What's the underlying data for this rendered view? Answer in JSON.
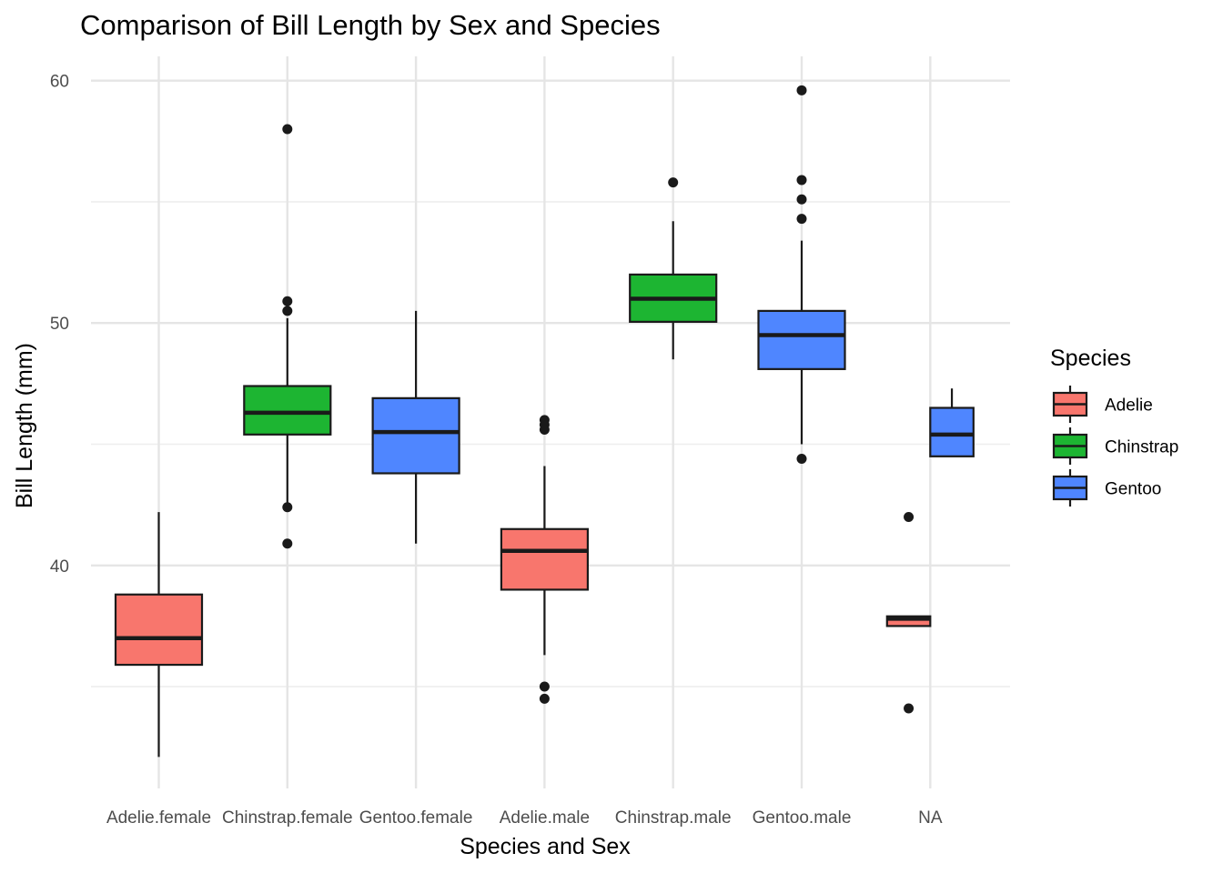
{
  "chart_data": {
    "type": "boxplot",
    "title": "Comparison of Bill Length by Sex and Species",
    "xlabel": "Species and Sex",
    "ylabel": "Bill Length (mm)",
    "categories": [
      "Adelie.female",
      "Chinstrap.female",
      "Gentoo.female",
      "Adelie.male",
      "Chinstrap.male",
      "Gentoo.male",
      "NA"
    ],
    "ylim": [
      30.8,
      61.0
    ],
    "yticks": [
      40,
      50,
      60
    ],
    "ytick_labels": [
      "40",
      "50",
      "60"
    ],
    "grid": true,
    "legend": {
      "title": "Species",
      "placement": "right",
      "entries": [
        {
          "label": "Adelie",
          "color": "#F8766D"
        },
        {
          "label": "Chinstrap",
          "color": "#1DB532"
        },
        {
          "label": "Gentoo",
          "color": "#4F86FF"
        }
      ]
    },
    "boxes": [
      {
        "category": "Adelie.female",
        "species": "Adelie",
        "lower_whisker": 32.1,
        "q1": 35.9,
        "median": 37.0,
        "q3": 38.8,
        "upper_whisker": 42.2,
        "outliers": []
      },
      {
        "category": "Chinstrap.female",
        "species": "Chinstrap",
        "lower_whisker": 42.5,
        "q1": 45.4,
        "median": 46.3,
        "q3": 47.4,
        "upper_whisker": 50.2,
        "outliers": [
          58.0,
          50.9,
          50.5,
          42.4,
          40.9
        ]
      },
      {
        "category": "Gentoo.female",
        "species": "Gentoo",
        "lower_whisker": 40.9,
        "q1": 43.8,
        "median": 45.5,
        "q3": 46.9,
        "upper_whisker": 50.5,
        "outliers": []
      },
      {
        "category": "Adelie.male",
        "species": "Adelie",
        "lower_whisker": 36.3,
        "q1": 39.0,
        "median": 40.6,
        "q3": 41.5,
        "upper_whisker": 44.1,
        "outliers": [
          46.0,
          45.8,
          45.6,
          35.0,
          34.5
        ]
      },
      {
        "category": "Chinstrap.male",
        "species": "Chinstrap",
        "lower_whisker": 48.5,
        "q1": 50.05,
        "median": 51.0,
        "q3": 52.0,
        "upper_whisker": 54.2,
        "outliers": [
          55.8
        ]
      },
      {
        "category": "Gentoo.male",
        "species": "Gentoo",
        "lower_whisker": 45.0,
        "q1": 48.1,
        "median": 49.5,
        "q3": 50.5,
        "upper_whisker": 53.4,
        "outliers": [
          59.6,
          55.9,
          55.1,
          54.3,
          44.4
        ]
      },
      {
        "category": "NA",
        "species": "Adelie",
        "offset": "left",
        "lower_whisker": 37.5,
        "q1": 37.5,
        "median": 37.8,
        "q3": 37.9,
        "upper_whisker": 37.9,
        "outliers": [
          42.0,
          34.1
        ]
      },
      {
        "category": "NA",
        "species": "Gentoo",
        "offset": "right",
        "lower_whisker": 44.5,
        "q1": 44.5,
        "median": 45.4,
        "q3": 46.5,
        "upper_whisker": 47.3,
        "outliers": []
      }
    ]
  }
}
